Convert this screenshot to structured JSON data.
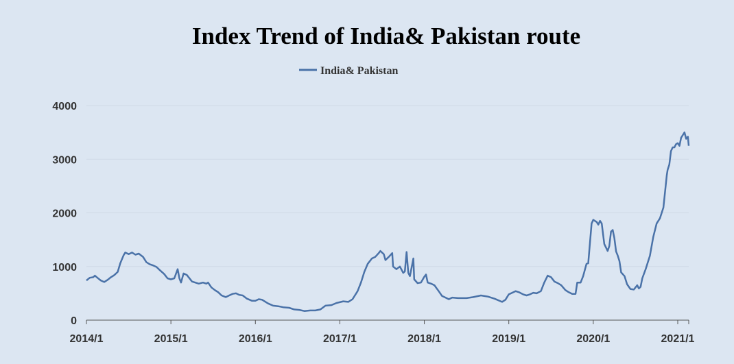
{
  "chart_data": {
    "type": "line",
    "title": "Index Trend of India& Pakistan route",
    "xlabel": "",
    "ylabel": "",
    "ylim": [
      0,
      4000
    ],
    "yticks": [
      "0",
      "1000",
      "2000",
      "3000",
      "4000"
    ],
    "xticks": [
      "2014/1",
      "2015/1",
      "2016/1",
      "2017/1",
      "2018/1",
      "2019/1",
      "2020/1",
      "2021/1"
    ],
    "grid": "horizontal",
    "legend_position": "top-center",
    "series": [
      {
        "name": "India& Pakistan",
        "color": "#4a72a8",
        "points": [
          [
            2014.0,
            740
          ],
          [
            2014.04,
            790
          ],
          [
            2014.08,
            800
          ],
          [
            2014.1,
            830
          ],
          [
            2014.13,
            790
          ],
          [
            2014.17,
            740
          ],
          [
            2014.21,
            710
          ],
          [
            2014.25,
            750
          ],
          [
            2014.29,
            800
          ],
          [
            2014.33,
            840
          ],
          [
            2014.37,
            900
          ],
          [
            2014.4,
            1060
          ],
          [
            2014.44,
            1210
          ],
          [
            2014.46,
            1260
          ],
          [
            2014.5,
            1230
          ],
          [
            2014.54,
            1260
          ],
          [
            2014.58,
            1220
          ],
          [
            2014.62,
            1240
          ],
          [
            2014.67,
            1180
          ],
          [
            2014.71,
            1080
          ],
          [
            2014.75,
            1040
          ],
          [
            2014.79,
            1020
          ],
          [
            2014.83,
            990
          ],
          [
            2014.87,
            930
          ],
          [
            2014.92,
            860
          ],
          [
            2014.96,
            780
          ],
          [
            2015.0,
            760
          ],
          [
            2015.04,
            780
          ],
          [
            2015.08,
            950
          ],
          [
            2015.1,
            780
          ],
          [
            2015.12,
            700
          ],
          [
            2015.15,
            870
          ],
          [
            2015.19,
            840
          ],
          [
            2015.25,
            720
          ],
          [
            2015.33,
            680
          ],
          [
            2015.38,
            700
          ],
          [
            2015.42,
            680
          ],
          [
            2015.44,
            700
          ],
          [
            2015.48,
            610
          ],
          [
            2015.52,
            560
          ],
          [
            2015.56,
            520
          ],
          [
            2015.6,
            460
          ],
          [
            2015.65,
            430
          ],
          [
            2015.69,
            460
          ],
          [
            2015.73,
            490
          ],
          [
            2015.77,
            500
          ],
          [
            2015.81,
            470
          ],
          [
            2015.85,
            460
          ],
          [
            2015.9,
            400
          ],
          [
            2015.96,
            360
          ],
          [
            2016.0,
            360
          ],
          [
            2016.04,
            390
          ],
          [
            2016.08,
            380
          ],
          [
            2016.15,
            310
          ],
          [
            2016.21,
            270
          ],
          [
            2016.27,
            260
          ],
          [
            2016.33,
            240
          ],
          [
            2016.4,
            230
          ],
          [
            2016.46,
            200
          ],
          [
            2016.52,
            190
          ],
          [
            2016.58,
            170
          ],
          [
            2016.65,
            180
          ],
          [
            2016.71,
            180
          ],
          [
            2016.77,
            200
          ],
          [
            2016.83,
            270
          ],
          [
            2016.9,
            280
          ],
          [
            2016.96,
            320
          ],
          [
            2017.04,
            350
          ],
          [
            2017.1,
            340
          ],
          [
            2017.15,
            390
          ],
          [
            2017.21,
            540
          ],
          [
            2017.25,
            700
          ],
          [
            2017.29,
            900
          ],
          [
            2017.33,
            1050
          ],
          [
            2017.38,
            1150
          ],
          [
            2017.42,
            1180
          ],
          [
            2017.46,
            1250
          ],
          [
            2017.48,
            1290
          ],
          [
            2017.52,
            1230
          ],
          [
            2017.54,
            1120
          ],
          [
            2017.58,
            1180
          ],
          [
            2017.62,
            1250
          ],
          [
            2017.63,
            1000
          ],
          [
            2017.67,
            950
          ],
          [
            2017.71,
            1000
          ],
          [
            2017.75,
            880
          ],
          [
            2017.77,
            910
          ],
          [
            2017.79,
            1270
          ],
          [
            2017.81,
            880
          ],
          [
            2017.83,
            820
          ],
          [
            2017.87,
            1150
          ],
          [
            2017.88,
            760
          ],
          [
            2017.92,
            690
          ],
          [
            2017.96,
            700
          ],
          [
            2018.0,
            810
          ],
          [
            2018.02,
            850
          ],
          [
            2018.04,
            700
          ],
          [
            2018.08,
            680
          ],
          [
            2018.12,
            650
          ],
          [
            2018.17,
            540
          ],
          [
            2018.21,
            450
          ],
          [
            2018.25,
            420
          ],
          [
            2018.29,
            390
          ],
          [
            2018.33,
            420
          ],
          [
            2018.4,
            410
          ],
          [
            2018.5,
            410
          ],
          [
            2018.58,
            430
          ],
          [
            2018.67,
            460
          ],
          [
            2018.75,
            440
          ],
          [
            2018.83,
            400
          ],
          [
            2018.92,
            340
          ],
          [
            2018.96,
            380
          ],
          [
            2019.0,
            480
          ],
          [
            2019.04,
            510
          ],
          [
            2019.08,
            540
          ],
          [
            2019.12,
            520
          ],
          [
            2019.17,
            480
          ],
          [
            2019.21,
            460
          ],
          [
            2019.25,
            480
          ],
          [
            2019.29,
            510
          ],
          [
            2019.33,
            500
          ],
          [
            2019.38,
            540
          ],
          [
            2019.42,
            700
          ],
          [
            2019.46,
            830
          ],
          [
            2019.5,
            800
          ],
          [
            2019.54,
            720
          ],
          [
            2019.58,
            690
          ],
          [
            2019.62,
            650
          ],
          [
            2019.67,
            560
          ],
          [
            2019.71,
            520
          ],
          [
            2019.75,
            490
          ],
          [
            2019.79,
            490
          ],
          [
            2019.81,
            700
          ],
          [
            2019.85,
            700
          ],
          [
            2019.88,
            820
          ],
          [
            2019.92,
            1050
          ],
          [
            2019.94,
            1060
          ],
          [
            2019.98,
            1800
          ],
          [
            2020.0,
            1870
          ],
          [
            2020.04,
            1830
          ],
          [
            2020.06,
            1780
          ],
          [
            2020.08,
            1850
          ],
          [
            2020.1,
            1800
          ],
          [
            2020.13,
            1420
          ],
          [
            2020.17,
            1290
          ],
          [
            2020.19,
            1380
          ],
          [
            2020.21,
            1650
          ],
          [
            2020.23,
            1680
          ],
          [
            2020.25,
            1530
          ],
          [
            2020.27,
            1280
          ],
          [
            2020.29,
            1200
          ],
          [
            2020.31,
            1100
          ],
          [
            2020.33,
            890
          ],
          [
            2020.37,
            820
          ],
          [
            2020.4,
            670
          ],
          [
            2020.44,
            580
          ],
          [
            2020.48,
            570
          ],
          [
            2020.5,
            610
          ],
          [
            2020.52,
            650
          ],
          [
            2020.54,
            590
          ],
          [
            2020.56,
            620
          ],
          [
            2020.58,
            780
          ],
          [
            2020.62,
            950
          ],
          [
            2020.67,
            1200
          ],
          [
            2020.71,
            1550
          ],
          [
            2020.75,
            1800
          ],
          [
            2020.79,
            1900
          ],
          [
            2020.83,
            2100
          ],
          [
            2020.87,
            2700
          ],
          [
            2020.88,
            2800
          ],
          [
            2020.9,
            2900
          ],
          [
            2020.92,
            3150
          ],
          [
            2020.94,
            3220
          ],
          [
            2020.96,
            3220
          ],
          [
            2020.98,
            3280
          ],
          [
            2021.0,
            3300
          ],
          [
            2021.02,
            3250
          ],
          [
            2021.04,
            3400
          ],
          [
            2021.06,
            3450
          ],
          [
            2021.08,
            3500
          ],
          [
            2021.1,
            3380
          ],
          [
            2021.12,
            3420
          ],
          [
            2021.13,
            3250
          ]
        ]
      }
    ]
  }
}
